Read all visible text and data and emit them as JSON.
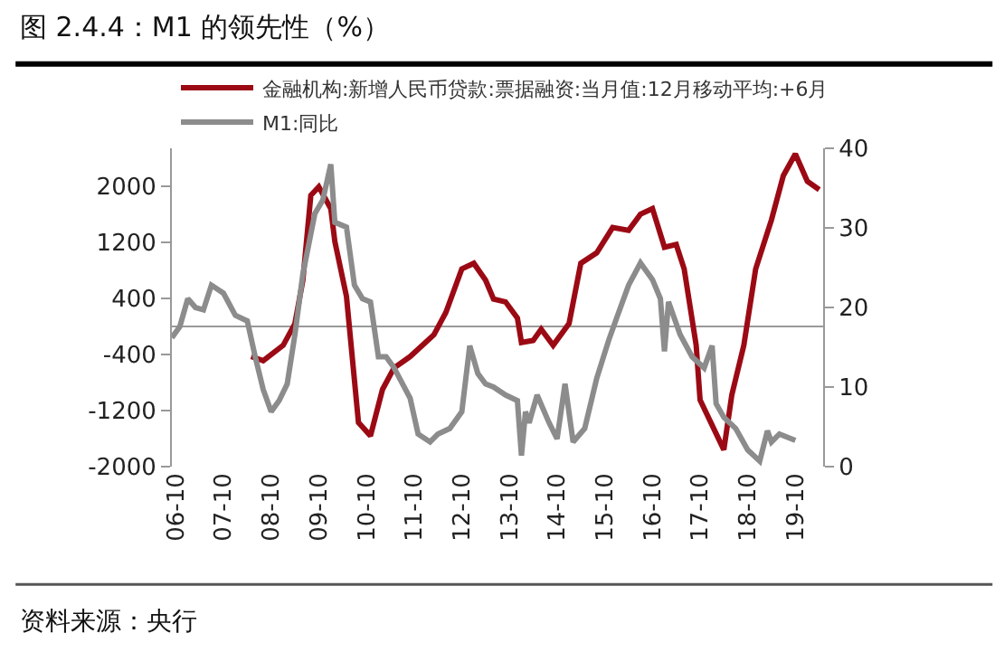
{
  "chart_data": {
    "type": "line",
    "title": "图 2.4.4：M1 的领先性（%）",
    "annotations": [
      "资料来源：央行"
    ],
    "xlim": [
      "2006-09",
      "2020-05"
    ],
    "xticks": [
      {
        "value": "2006-10",
        "label": "06-10"
      },
      {
        "value": "2007-10",
        "label": "07-10"
      },
      {
        "value": "2008-10",
        "label": "08-10"
      },
      {
        "value": "2009-10",
        "label": "09-10"
      },
      {
        "value": "2010-10",
        "label": "10-10"
      },
      {
        "value": "2011-10",
        "label": "11-10"
      },
      {
        "value": "2012-10",
        "label": "12-10"
      },
      {
        "value": "2013-10",
        "label": "13-10"
      },
      {
        "value": "2014-10",
        "label": "14-10"
      },
      {
        "value": "2015-10",
        "label": "15-10"
      },
      {
        "value": "2016-10",
        "label": "16-10"
      },
      {
        "value": "2017-10",
        "label": "17-10"
      },
      {
        "value": "2018-10",
        "label": "18-10"
      },
      {
        "value": "2019-10",
        "label": "19-10"
      }
    ],
    "ylim": [
      -2000,
      2540
    ],
    "yticks": [
      -2000,
      -1200,
      -400,
      400,
      1200,
      2000
    ],
    "y2lim": [
      0,
      40
    ],
    "y2ticks": [
      0,
      10,
      20,
      30,
      40
    ],
    "legend": "top left",
    "marker": "none",
    "line_style": "solid",
    "series": [
      {
        "name": "金融机构:新增人民币贷款:票据融资:当月值:12月移动平均:+6月",
        "color": "#9b0a14",
        "x": [
          "2008-05",
          "2008-08",
          "2009-01",
          "2009-04",
          "2009-06",
          "2009-08",
          "2009-10",
          "2010-01",
          "2010-02",
          "2010-05",
          "2010-08",
          "2010-11",
          "2011-02",
          "2011-05",
          "2011-09",
          "2012-03",
          "2012-06",
          "2012-10",
          "2013-01",
          "2013-04",
          "2013-06",
          "2013-09",
          "2013-12",
          "2014-01",
          "2014-04",
          "2014-06",
          "2014-09",
          "2015-01",
          "2015-04",
          "2015-08",
          "2015-12",
          "2016-04",
          "2016-07",
          "2016-10",
          "2017-01",
          "2017-04",
          "2017-06",
          "2017-09",
          "2017-10",
          "2018-04",
          "2018-06",
          "2018-09",
          "2018-12",
          "2019-04",
          "2019-07",
          "2019-10",
          "2020-01",
          "2020-04"
        ],
        "values": [
          -430,
          -490,
          -270,
          40,
          660,
          1870,
          1990,
          1680,
          1210,
          430,
          -1370,
          -1560,
          -900,
          -590,
          -430,
          -120,
          200,
          820,
          900,
          660,
          390,
          350,
          120,
          -230,
          -200,
          -40,
          -270,
          40,
          900,
          1050,
          1410,
          1370,
          1600,
          1680,
          1130,
          1170,
          820,
          -270,
          -1050,
          -1760,
          -980,
          -270,
          820,
          1520,
          2150,
          2460,
          2070,
          1950
        ]
      },
      {
        "name": "M1:同比",
        "color": "#8c8c8c",
        "axis": "y2",
        "x": [
          "2006-09",
          "2006-11",
          "2007-01",
          "2007-03",
          "2007-05",
          "2007-07",
          "2007-10",
          "2008-01",
          "2008-04",
          "2008-06",
          "2008-08",
          "2008-10",
          "2008-12",
          "2009-02",
          "2009-04",
          "2009-06",
          "2009-09",
          "2009-11",
          "2010-01",
          "2010-02",
          "2010-05",
          "2010-07",
          "2010-09",
          "2010-11",
          "2011-01",
          "2011-03",
          "2011-05",
          "2011-09",
          "2011-11",
          "2012-02",
          "2012-04",
          "2012-07",
          "2012-10",
          "2012-12",
          "2013-02",
          "2013-04",
          "2013-06",
          "2013-09",
          "2013-12",
          "2014-01",
          "2014-02",
          "2014-03",
          "2014-05",
          "2014-08",
          "2014-10",
          "2014-12",
          "2015-02",
          "2015-05",
          "2015-08",
          "2015-11",
          "2016-01",
          "2016-04",
          "2016-07",
          "2016-10",
          "2016-12",
          "2017-01",
          "2017-02",
          "2017-05",
          "2017-08",
          "2017-11",
          "2018-01",
          "2018-02",
          "2018-04",
          "2018-07",
          "2018-10",
          "2019-01",
          "2019-03",
          "2019-04",
          "2019-06",
          "2019-10"
        ],
        "values": [
          16.2,
          17.6,
          21.1,
          20.0,
          19.7,
          22.8,
          21.8,
          19.0,
          18.3,
          13.8,
          9.7,
          6.9,
          8.3,
          10.4,
          16.6,
          24.2,
          31.8,
          33.5,
          38.0,
          30.7,
          30.1,
          22.8,
          21.1,
          20.7,
          13.8,
          13.8,
          12.4,
          8.6,
          4.1,
          3.1,
          4.1,
          4.8,
          6.9,
          15.2,
          11.7,
          10.4,
          10.0,
          9.0,
          8.3,
          1.4,
          6.9,
          5.5,
          9.0,
          5.5,
          3.5,
          10.4,
          3.1,
          4.8,
          11.1,
          15.9,
          18.7,
          22.8,
          25.6,
          23.5,
          21.1,
          14.5,
          20.7,
          16.6,
          13.8,
          12.4,
          15.2,
          7.9,
          6.2,
          4.8,
          2.1,
          0.7,
          4.5,
          3.1,
          4.1,
          3.3
        ]
      }
    ]
  }
}
